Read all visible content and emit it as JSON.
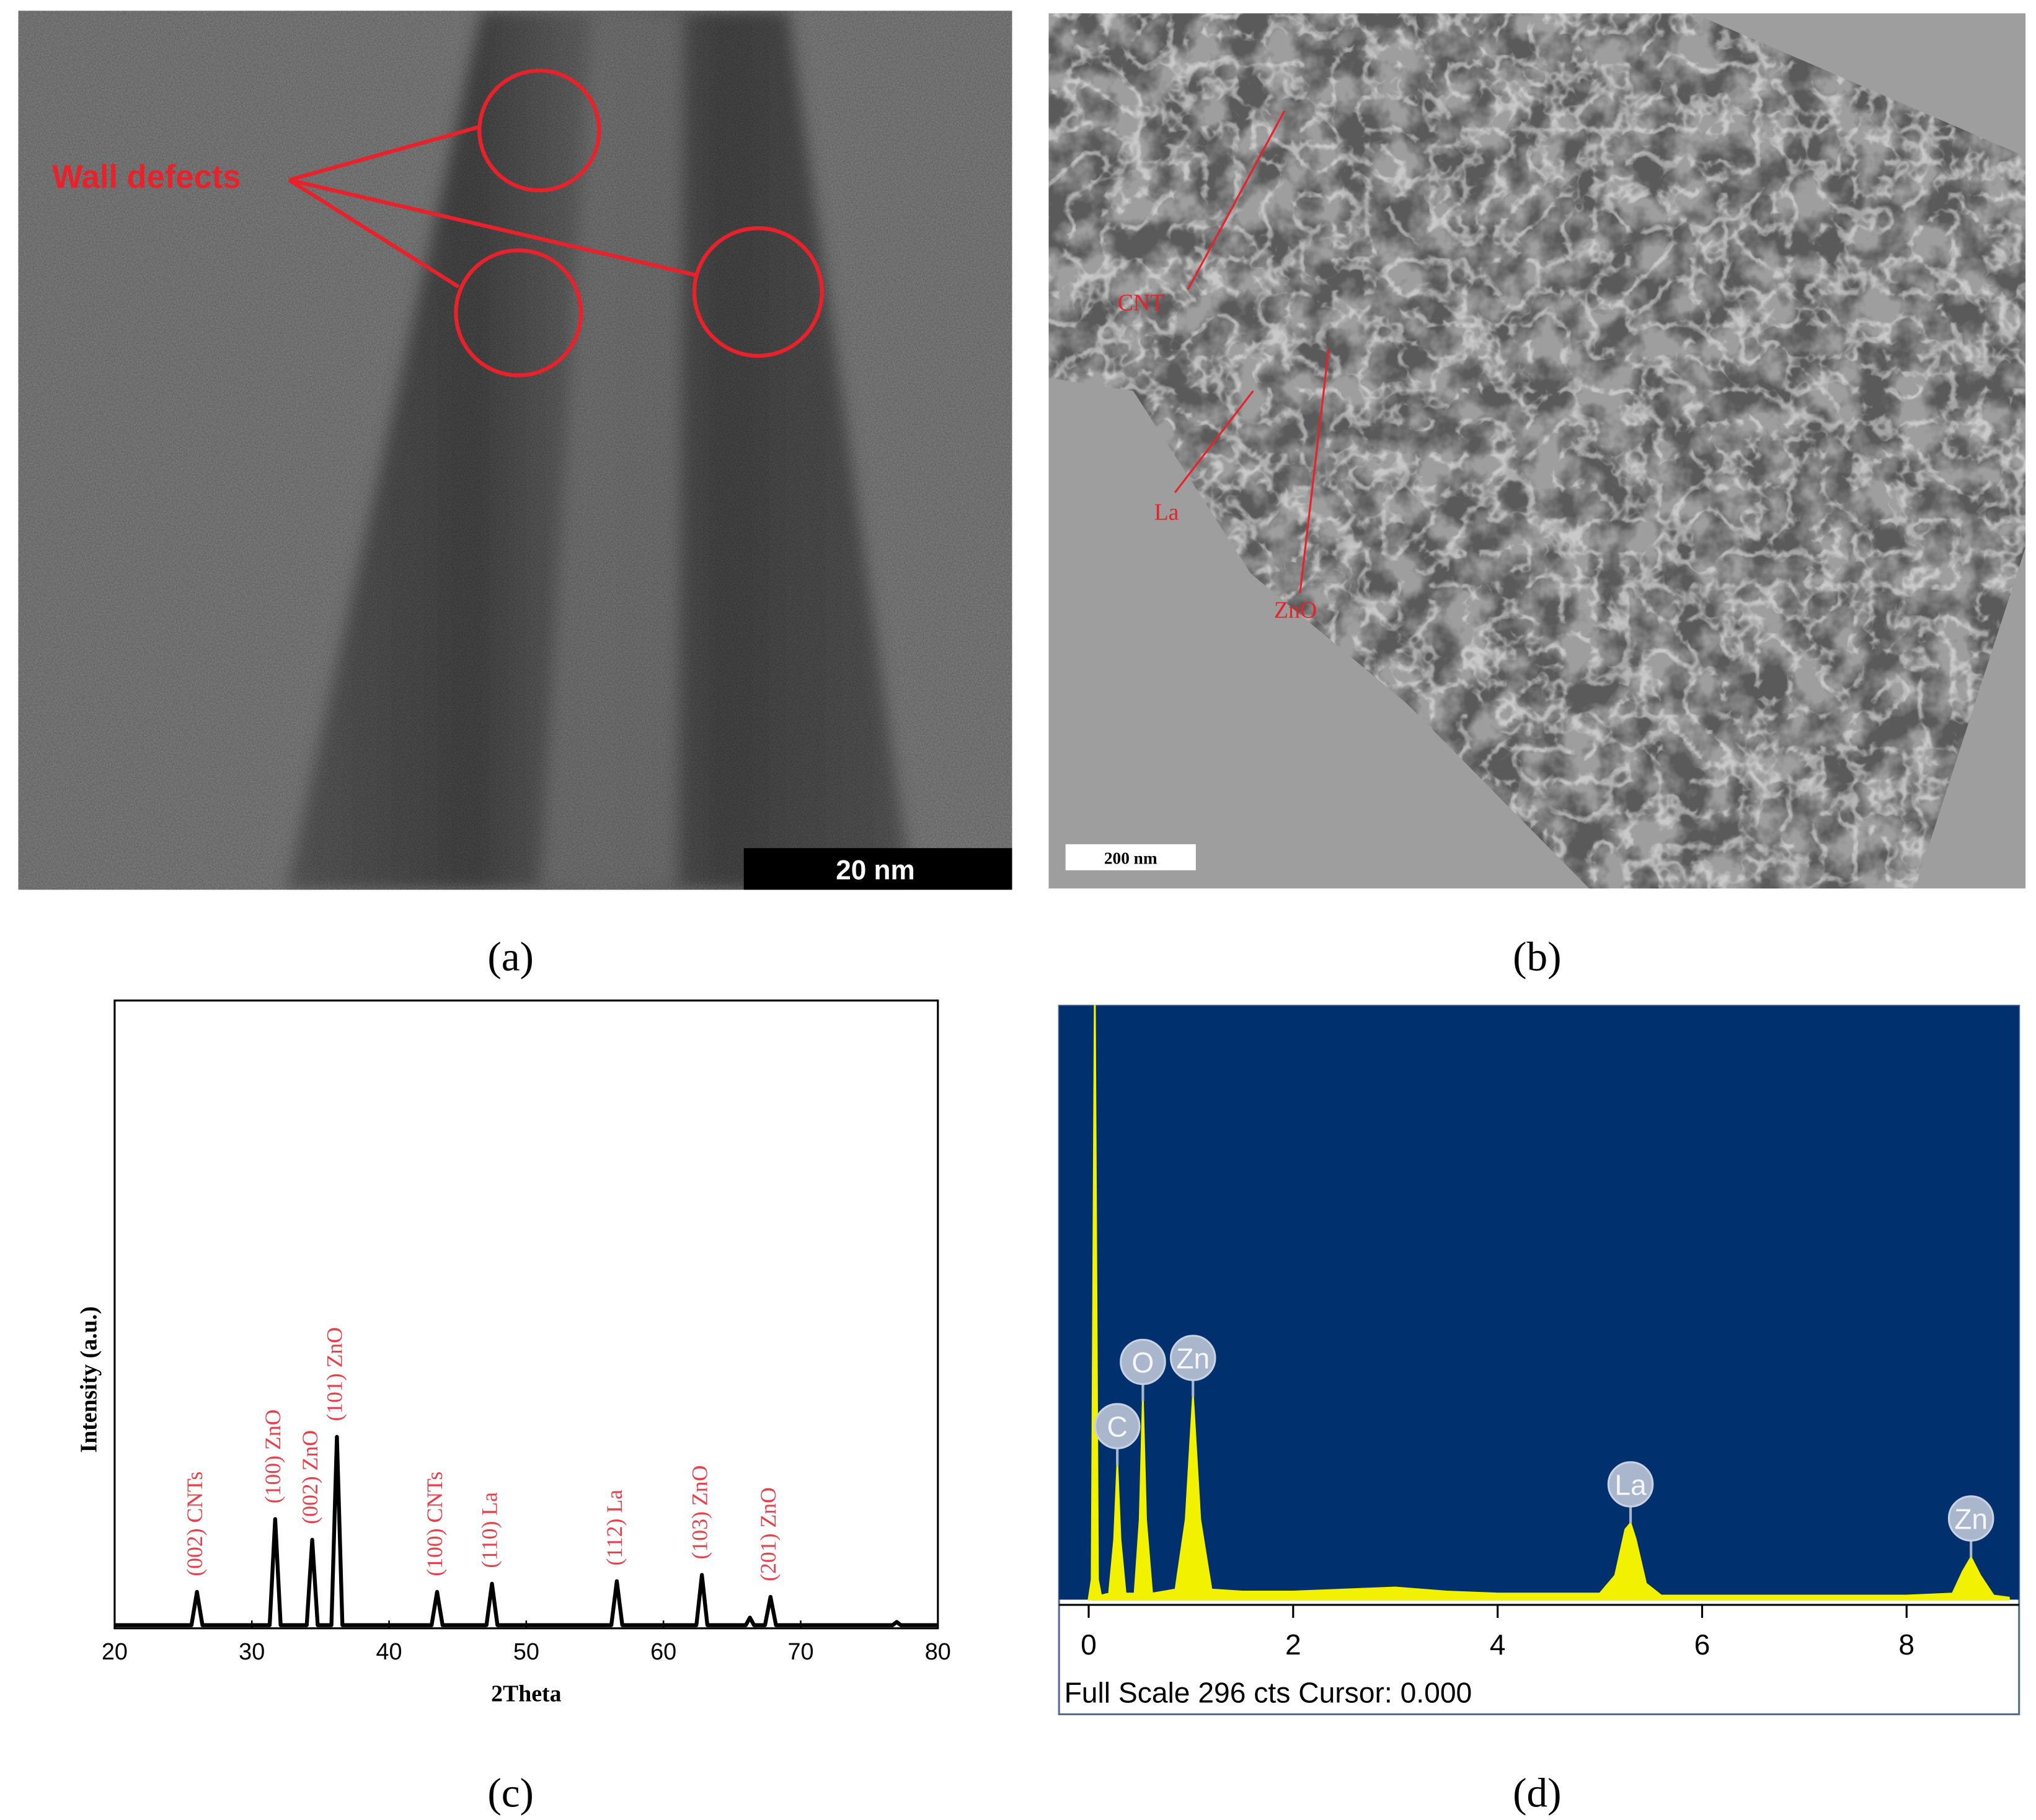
{
  "panels": [
    {
      "panel_label": "(a)",
      "annotation": "Wall defects",
      "scale_bar": "20 nm"
    },
    {
      "panel_label": "(b)",
      "annotations": [
        "CNT",
        "La",
        "ZnO"
      ],
      "scale_bar": "200 nm"
    }
  ],
  "chart_data": [
    {
      "type": "line",
      "panel_label": "(c)",
      "x_label": "2Theta",
      "y_label": "Intensity (a.u.)",
      "color": "#000000",
      "xlim": [
        20,
        80
      ],
      "ylim": [
        0,
        100
      ],
      "xticks": [
        20,
        30,
        40,
        50,
        60,
        70,
        80
      ],
      "x": [
        20,
        25.6,
        26,
        26.4,
        31.3,
        31.7,
        32.1,
        34.0,
        34.4,
        34.8,
        35.8,
        36.2,
        36.6,
        43.1,
        43.5,
        43.9,
        47.1,
        47.5,
        47.9,
        56.2,
        56.6,
        57.0,
        62.4,
        62.8,
        63.2,
        66.0,
        66.3,
        66.6,
        67.4,
        67.8,
        68.2,
        76.7,
        77,
        77.3,
        80
      ],
      "values": [
        0.5,
        0.5,
        5.8,
        0.5,
        0.5,
        17.4,
        0.5,
        0.5,
        14.1,
        0.5,
        0.5,
        30.5,
        0.5,
        0.5,
        5.8,
        0.5,
        0.5,
        7.1,
        0.5,
        0.5,
        7.5,
        0.5,
        0.5,
        8.5,
        0.5,
        0.5,
        1.7,
        0.5,
        0.5,
        5.0,
        0.5,
        0.5,
        1.0,
        0.5,
        0.5
      ],
      "annotations": [
        {
          "text": "(002) CNTs",
          "x": 26
        },
        {
          "text": "(100) ZnO",
          "x": 31.7
        },
        {
          "text": "(002) ZnO",
          "x": 34.4
        },
        {
          "text": "(101) ZnO",
          "x": 36.2
        },
        {
          "text": "(100) CNTs",
          "x": 43.5
        },
        {
          "text": "(110) La",
          "x": 47.5
        },
        {
          "text": "(112) La",
          "x": 56.6
        },
        {
          "text": "(103) ZnO",
          "x": 62.8
        },
        {
          "text": "(201) ZnO",
          "x": 67.8
        }
      ]
    },
    {
      "type": "area",
      "panel_label": "(d)",
      "footer": "Full Scale 296 cts Cursor: 0.000",
      "color": "#f2f200",
      "background": "#00306e",
      "xlim": [
        -0.29,
        9.1
      ],
      "ylim": [
        0,
        296
      ],
      "xticks": [
        0,
        2,
        4,
        6,
        8
      ],
      "x": [
        0,
        0.03,
        0.06,
        0.09,
        0.12,
        0.2,
        0.25,
        0.28,
        0.31,
        0.36,
        0.45,
        0.5,
        0.53,
        0.56,
        0.62,
        0.85,
        0.95,
        1.02,
        1.09,
        1.2,
        1.5,
        2.0,
        2.5,
        3.0,
        3.5,
        4.0,
        4.5,
        5.0,
        5.15,
        5.25,
        5.3,
        5.35,
        5.45,
        5.6,
        6.0,
        7.0,
        8.0,
        8.45,
        8.55,
        8.63,
        8.72,
        8.85,
        9.0
      ],
      "values": [
        0,
        10,
        296,
        10,
        2,
        3,
        30,
        67,
        30,
        3,
        3,
        40,
        99,
        40,
        3,
        5,
        40,
        101,
        40,
        5,
        4,
        4,
        5,
        6,
        4,
        3,
        3,
        3,
        12,
        35,
        38,
        30,
        8,
        2,
        2,
        2,
        2,
        3,
        14,
        21,
        12,
        2,
        1
      ],
      "annotations": [
        {
          "text": "C",
          "x": 0.28
        },
        {
          "text": "O",
          "x": 0.53
        },
        {
          "text": "Zn",
          "x": 1.02
        },
        {
          "text": "La",
          "x": 5.3
        },
        {
          "text": "Zn",
          "x": 8.63
        }
      ]
    }
  ]
}
